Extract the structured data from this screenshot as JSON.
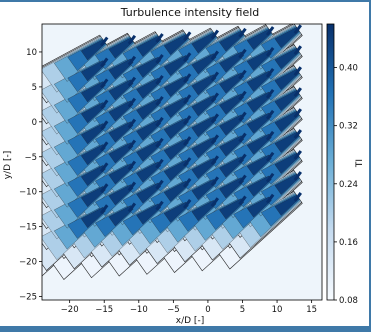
{
  "chart_data": {
    "type": "heatmap",
    "title": "Turbulence intensity field",
    "xlabel": "x/D [-]",
    "ylabel": "y/D [-]",
    "xlim": [
      -24,
      16.5
    ],
    "ylim": [
      -25.5,
      14
    ],
    "xticks": [
      -20,
      -15,
      -10,
      -5,
      0,
      5,
      10,
      15
    ],
    "yticks": [
      -25,
      -20,
      -15,
      -10,
      -5,
      0,
      5,
      10
    ],
    "colorbar": {
      "label": "TI",
      "range": [
        0.08,
        0.46
      ],
      "ticks": [
        0.08,
        0.16,
        0.24,
        0.32,
        0.4
      ]
    },
    "colormap": "Blues",
    "ambient_ti": 0.08,
    "peak_ti": 0.46,
    "turbine_rows_x": [
      -15,
      -11,
      -7,
      -3,
      1,
      5,
      9,
      13
    ],
    "turbine_offsets_y": [
      -12.5,
      -9.5,
      -6.5,
      -3.5,
      -0.5,
      2.5,
      5.5,
      8.5,
      11.5
    ],
    "wake_direction": "toward lower-left",
    "grid": false
  },
  "colors": {
    "background": "#3f79a8",
    "plot_bg": "#ffffff",
    "contour": "#333333"
  }
}
